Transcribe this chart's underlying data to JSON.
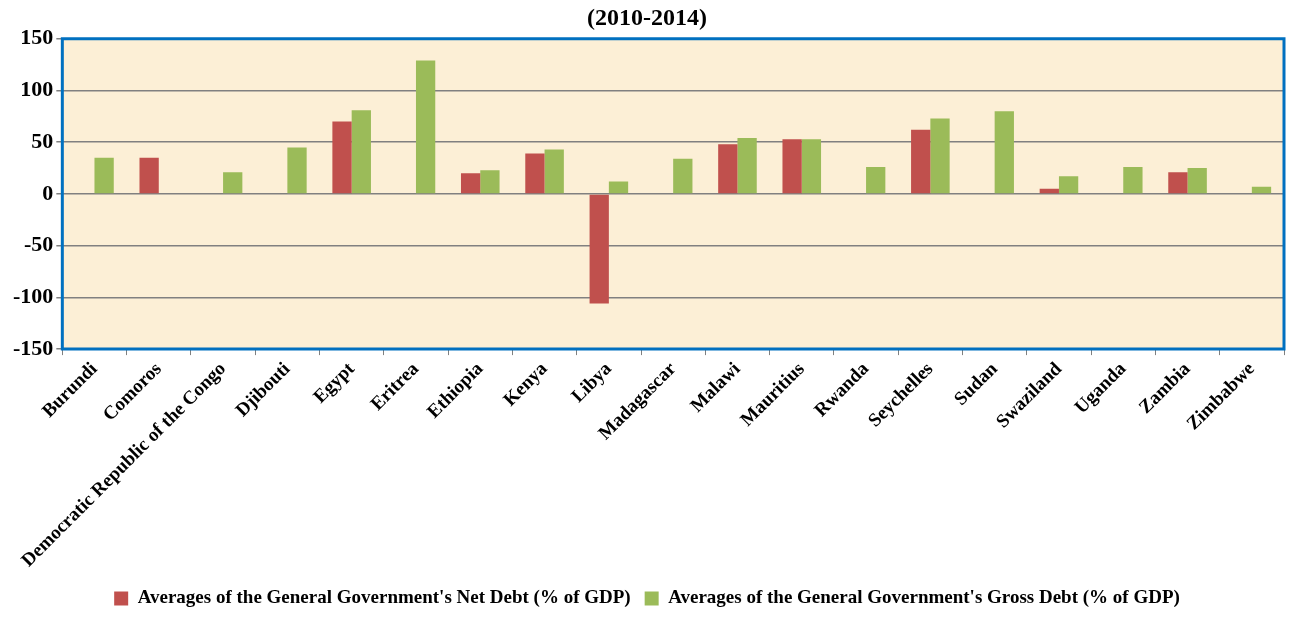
{
  "chart_data": {
    "type": "bar",
    "title": "(2010-2014)",
    "categories": [
      "Burundi",
      "Comoros",
      "Democratic Republic of the Congo",
      "Djibouti",
      "Egypt",
      "Eritrea",
      "Ethiopia",
      "Kenya",
      "Libya",
      "Madagascar",
      "Malawi",
      "Mauritius",
      "Rwanda",
      "Seychelles",
      "Sudan",
      "Swaziland",
      "Uganda",
      "Zambia",
      "Zimbabwe"
    ],
    "series": [
      {
        "name": "Averages of the General Government's Net Debt (% of GDP)",
        "color": "#c0504d",
        "values": [
          null,
          35,
          null,
          null,
          70,
          null,
          20,
          39,
          -106,
          null,
          48,
          53,
          null,
          62,
          null,
          5,
          null,
          21,
          null
        ]
      },
      {
        "name": "Averages of the General Government's Gross Debt (% of GDP)",
        "color": "#9bbb59",
        "values": [
          35,
          null,
          21,
          45,
          81,
          129,
          23,
          43,
          12,
          34,
          54,
          53,
          26,
          73,
          80,
          17,
          26,
          25,
          7
        ]
      }
    ],
    "ylim": [
      -150,
      150
    ],
    "yticks": [
      -150,
      -100,
      -50,
      0,
      50,
      100,
      150
    ],
    "grid": "y",
    "legend": "bottom"
  }
}
